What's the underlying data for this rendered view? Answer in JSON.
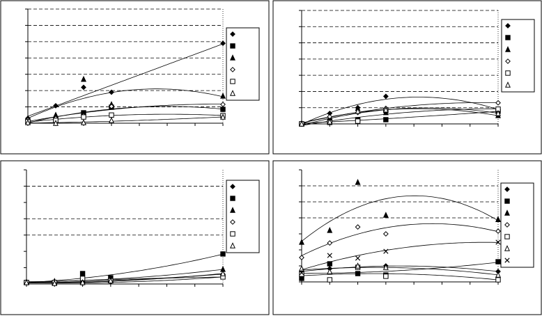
{
  "chart_data": [
    {
      "type": "scatter",
      "x": [
        0,
        1,
        2,
        3,
        7
      ],
      "xlim": [
        0,
        7
      ],
      "xticks": [
        0,
        1,
        2,
        3,
        4,
        5,
        6,
        7
      ],
      "ylim": [
        0,
        7
      ],
      "yticks": [
        0,
        1,
        2,
        3,
        4,
        5,
        6,
        7
      ],
      "grid_values": [
        1,
        2,
        3,
        4,
        5,
        6,
        7
      ],
      "trendline": "polynomial",
      "legend": "right",
      "series": [
        {
          "marker": "diamond",
          "color": "#000000",
          "values": [
            0.3,
            1.07,
            2.2,
            1.9,
            4.9
          ]
        },
        {
          "marker": "square",
          "color": "#000000",
          "values": [
            0.13,
            0.2,
            0.64,
            0.98,
            0.85
          ]
        },
        {
          "marker": "triangle",
          "color": "#000000",
          "values": [
            0.3,
            0.5,
            2.7,
            1.15,
            1.67
          ]
        },
        {
          "marker": "diamond-open",
          "color": "#000000",
          "values": [
            0.2,
            0.3,
            0.47,
            1.03,
            1.15
          ]
        },
        {
          "marker": "square-open",
          "color": "#000000",
          "values": [
            0.1,
            0.17,
            0.38,
            0.5,
            0.47
          ]
        },
        {
          "marker": "triangle-open",
          "color": "#000000",
          "values": [
            0.04,
            0,
            0.04,
            0.17,
            0.38
          ]
        }
      ]
    },
    {
      "type": "scatter",
      "x": [
        0,
        1,
        2,
        3,
        7
      ],
      "xlim": [
        0,
        7
      ],
      "xticks": [
        0,
        1,
        2,
        3,
        4,
        5,
        6,
        7
      ],
      "ylim": [
        0,
        7
      ],
      "yticks": [
        0,
        1,
        2,
        3,
        4,
        5,
        6,
        7
      ],
      "grid_values": [
        1,
        2,
        3,
        4,
        5,
        6,
        7
      ],
      "trendline": "polynomial",
      "legend": "right",
      "series": [
        {
          "marker": "diamond",
          "color": "#000000",
          "values": [
            0.04,
            0.65,
            1.0,
            1.7,
            0.87
          ]
        },
        {
          "marker": "square",
          "color": "#000000",
          "values": [
            0,
            0.17,
            0.26,
            0.26,
            0.78
          ]
        },
        {
          "marker": "triangle",
          "color": "#000000",
          "values": [
            0.04,
            0.35,
            0.96,
            0.7,
            0.52
          ]
        },
        {
          "marker": "diamond-open",
          "color": "#000000",
          "values": [
            0.04,
            0.44,
            0.7,
            0.96,
            1.3
          ]
        },
        {
          "marker": "square-open",
          "color": "#000000",
          "values": [
            0,
            0.09,
            0.17,
            0.83,
            0.91
          ]
        },
        {
          "marker": "triangle-open",
          "color": "#000000",
          "values": [
            0,
            0.13,
            0.78,
            0.87,
            0.65
          ]
        }
      ]
    },
    {
      "type": "scatter",
      "x": [
        0,
        1,
        2,
        3,
        7
      ],
      "xlim": [
        0,
        7
      ],
      "xticks": [
        0,
        1,
        2,
        3,
        4,
        5,
        6,
        7
      ],
      "ylim": [
        0,
        7
      ],
      "yticks": [
        0,
        1,
        2,
        3,
        4,
        5,
        6,
        7
      ],
      "grid_values": [
        3,
        4,
        6
      ],
      "trendline": "polynomial",
      "legend": "right",
      "series": [
        {
          "marker": "diamond",
          "color": "#000000",
          "values": [
            0.09,
            0.04,
            0.04,
            0.13,
            0.43
          ]
        },
        {
          "marker": "square",
          "color": "#000000",
          "values": [
            0.09,
            0.09,
            0.64,
            0.38,
            1.84
          ]
        },
        {
          "marker": "triangle",
          "color": "#000000",
          "values": [
            0.13,
            0.17,
            0.26,
            0.26,
            0.9
          ]
        },
        {
          "marker": "diamond-open",
          "color": "#000000",
          "values": [
            0.09,
            0.09,
            0.09,
            0.26,
            0.6
          ]
        },
        {
          "marker": "square-open",
          "color": "#000000",
          "values": [
            0.09,
            0.09,
            0.34,
            0.2,
            0.43
          ]
        },
        {
          "marker": "triangle-open",
          "color": "#000000",
          "values": [
            0.09,
            0.04,
            0.09,
            0.2,
            0.64
          ]
        }
      ]
    },
    {
      "type": "scatter",
      "x": [
        0,
        1,
        2,
        3,
        7
      ],
      "xlim": [
        0,
        7
      ],
      "xticks": [
        0,
        1,
        2,
        3,
        4,
        5,
        6,
        7
      ],
      "ylim": [
        0,
        7
      ],
      "yticks": [
        0,
        1,
        2,
        3,
        4,
        5,
        6,
        7
      ],
      "grid_values": [
        4,
        5,
        6
      ],
      "trendline": "polynomial",
      "legend": "right",
      "series": [
        {
          "marker": "diamond",
          "color": "#000000",
          "values": [
            0.65,
            0.83,
            0.91,
            1.0,
            0.65
          ]
        },
        {
          "marker": "square",
          "color": "#000000",
          "values": [
            0.22,
            1.13,
            0.52,
            0.43,
            1.26
          ]
        },
        {
          "marker": "triangle",
          "color": "#000000",
          "values": [
            2.48,
            3.22,
            6.22,
            4.17,
            3.9
          ]
        },
        {
          "marker": "diamond-open",
          "color": "#000000",
          "values": [
            1.52,
            2.43,
            3.43,
            3.0,
            3.17
          ]
        },
        {
          "marker": "square-open",
          "color": "#000000",
          "values": [
            0.48,
            0.13,
            0.91,
            0.35,
            0.13
          ]
        },
        {
          "marker": "triangle-open",
          "color": "#000000",
          "values": [
            0.83,
            0.65,
            1.0,
            0.91,
            0.43
          ]
        },
        {
          "marker": "x",
          "color": "#000000",
          "values": [
            0.57,
            1.65,
            1.48,
            1.91,
            2.48
          ]
        }
      ]
    }
  ]
}
